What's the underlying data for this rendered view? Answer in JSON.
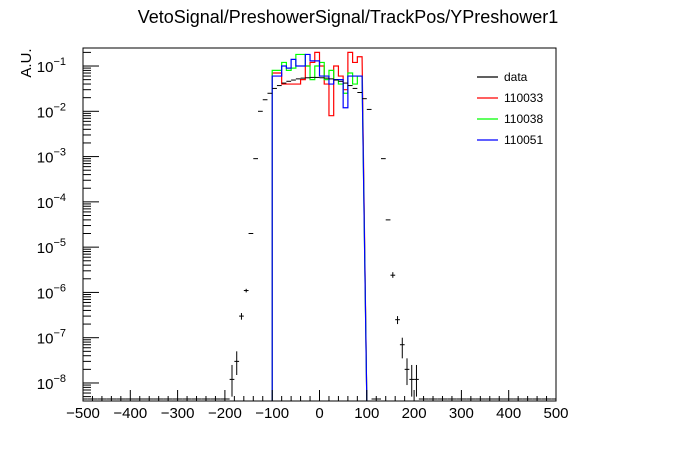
{
  "chart_data": {
    "type": "histogram",
    "title": "VetoSignal/PreshowerSignal/TrackPos/YPreshower1",
    "ylabel": "A.U.",
    "xlabel": "",
    "xlim": [
      -500,
      500
    ],
    "ylim": [
      4e-09,
      0.25
    ],
    "yscale": "log",
    "x_tick_labels": [
      "−500",
      "−400",
      "−300",
      "−200",
      "−100",
      "0",
      "100",
      "200",
      "300",
      "400",
      "500"
    ],
    "x_ticks": [
      -500,
      -400,
      -300,
      -200,
      -100,
      0,
      100,
      200,
      300,
      400,
      500
    ],
    "y_tick_exponents": [
      "−1",
      "−2",
      "−3",
      "−4",
      "−5",
      "−6",
      "−7",
      "−8"
    ],
    "y_ticks": [
      0.1,
      0.01,
      0.001,
      0.0001,
      1e-05,
      1e-06,
      1e-07,
      1e-08
    ],
    "y_tick_base": "10",
    "grid": false,
    "legend_position": "top-right",
    "bin_edges": [
      -100,
      -90,
      -80,
      -70,
      -60,
      -50,
      -40,
      -30,
      -20,
      -10,
      0,
      10,
      20,
      30,
      40,
      50,
      60,
      70,
      80,
      90
    ],
    "data_points": [
      {
        "x": -185,
        "y": 1.2e-08,
        "xerr": 5,
        "ylo": 5e-09,
        "yhi": 2.5e-08
      },
      {
        "x": -175,
        "y": 3e-08,
        "xerr": 5,
        "ylo": 1.5e-08,
        "yhi": 5e-08
      },
      {
        "x": -165,
        "y": 3e-07,
        "xerr": 5,
        "ylo": 2.5e-07,
        "yhi": 3.5e-07
      },
      {
        "x": -155,
        "y": 1.1e-06,
        "xerr": 5,
        "ylo": 1e-06,
        "yhi": 1.2e-06
      },
      {
        "x": -145,
        "y": 2e-05,
        "xerr": 5
      },
      {
        "x": -135,
        "y": 0.0009,
        "xerr": 5
      },
      {
        "x": -125,
        "y": 0.01,
        "xerr": 5
      },
      {
        "x": -115,
        "y": 0.018,
        "xerr": 5
      },
      {
        "x": -105,
        "y": 0.025,
        "xerr": 5
      },
      {
        "x": -95,
        "y": 0.032,
        "xerr": 5
      },
      {
        "x": -85,
        "y": 0.037,
        "xerr": 5
      },
      {
        "x": -75,
        "y": 0.042,
        "xerr": 5
      },
      {
        "x": -65,
        "y": 0.046,
        "xerr": 5
      },
      {
        "x": -55,
        "y": 0.049,
        "xerr": 5
      },
      {
        "x": -45,
        "y": 0.052,
        "xerr": 5
      },
      {
        "x": -35,
        "y": 0.054,
        "xerr": 5
      },
      {
        "x": -25,
        "y": 0.055,
        "xerr": 5
      },
      {
        "x": -15,
        "y": 0.056,
        "xerr": 5
      },
      {
        "x": -5,
        "y": 0.056,
        "xerr": 5
      },
      {
        "x": 5,
        "y": 0.055,
        "xerr": 5
      },
      {
        "x": 15,
        "y": 0.054,
        "xerr": 5
      },
      {
        "x": 25,
        "y": 0.052,
        "xerr": 5
      },
      {
        "x": 35,
        "y": 0.049,
        "xerr": 5
      },
      {
        "x": 45,
        "y": 0.046,
        "xerr": 5
      },
      {
        "x": 55,
        "y": 0.042,
        "xerr": 5
      },
      {
        "x": 65,
        "y": 0.037,
        "xerr": 5
      },
      {
        "x": 75,
        "y": 0.032,
        "xerr": 5
      },
      {
        "x": 85,
        "y": 0.026,
        "xerr": 5
      },
      {
        "x": 95,
        "y": 0.019,
        "xerr": 5
      },
      {
        "x": 105,
        "y": 0.011,
        "xerr": 5
      },
      {
        "x": 135,
        "y": 0.0009,
        "xerr": 5
      },
      {
        "x": 145,
        "y": 4e-05,
        "xerr": 5
      },
      {
        "x": 155,
        "y": 2.4e-06,
        "xerr": 5,
        "ylo": 2.1e-06,
        "yhi": 2.8e-06
      },
      {
        "x": 165,
        "y": 2.5e-07,
        "xerr": 5,
        "ylo": 2e-07,
        "yhi": 3e-07
      },
      {
        "x": 175,
        "y": 7e-08,
        "xerr": 5,
        "ylo": 3.5e-08,
        "yhi": 1e-07
      },
      {
        "x": 185,
        "y": 2e-08,
        "xerr": 5,
        "ylo": 9e-09,
        "yhi": 3.5e-08
      },
      {
        "x": 195,
        "y": 1.2e-08,
        "xerr": 5,
        "ylo": 5e-09,
        "yhi": 2.5e-08
      },
      {
        "x": 205,
        "y": 1.2e-08,
        "xerr": 5,
        "ylo": 5e-09,
        "yhi": 2.5e-08
      }
    ],
    "series": [
      {
        "name": "data",
        "color": "#000000",
        "style": "points"
      },
      {
        "name": "110033",
        "color": "#ff0000",
        "style": "step",
        "values": [
          0.07,
          0.07,
          0.04,
          0.04,
          0.04,
          0.04,
          0.05,
          0.1,
          0.12,
          0.2,
          0.1,
          0.04,
          0.008,
          0.1,
          0.06,
          0.03,
          0.2,
          0.12,
          0.16
        ]
      },
      {
        "name": "110038",
        "color": "#00ff00",
        "style": "step",
        "values": [
          0.08,
          0.08,
          0.12,
          0.08,
          0.09,
          0.18,
          0.18,
          0.1,
          0.05,
          0.1,
          0.12,
          0.05,
          0.08,
          0.05,
          0.04,
          0.025,
          0.07,
          0.04,
          0.06
        ]
      },
      {
        "name": "110051",
        "color": "#0000ff",
        "style": "step",
        "values": [
          0.06,
          0.06,
          0.1,
          0.09,
          0.14,
          0.1,
          0.1,
          0.18,
          0.13,
          0.13,
          0.06,
          0.06,
          0.04,
          0.05,
          0.05,
          0.012,
          0.06,
          0.06,
          0.06
        ]
      }
    ]
  }
}
